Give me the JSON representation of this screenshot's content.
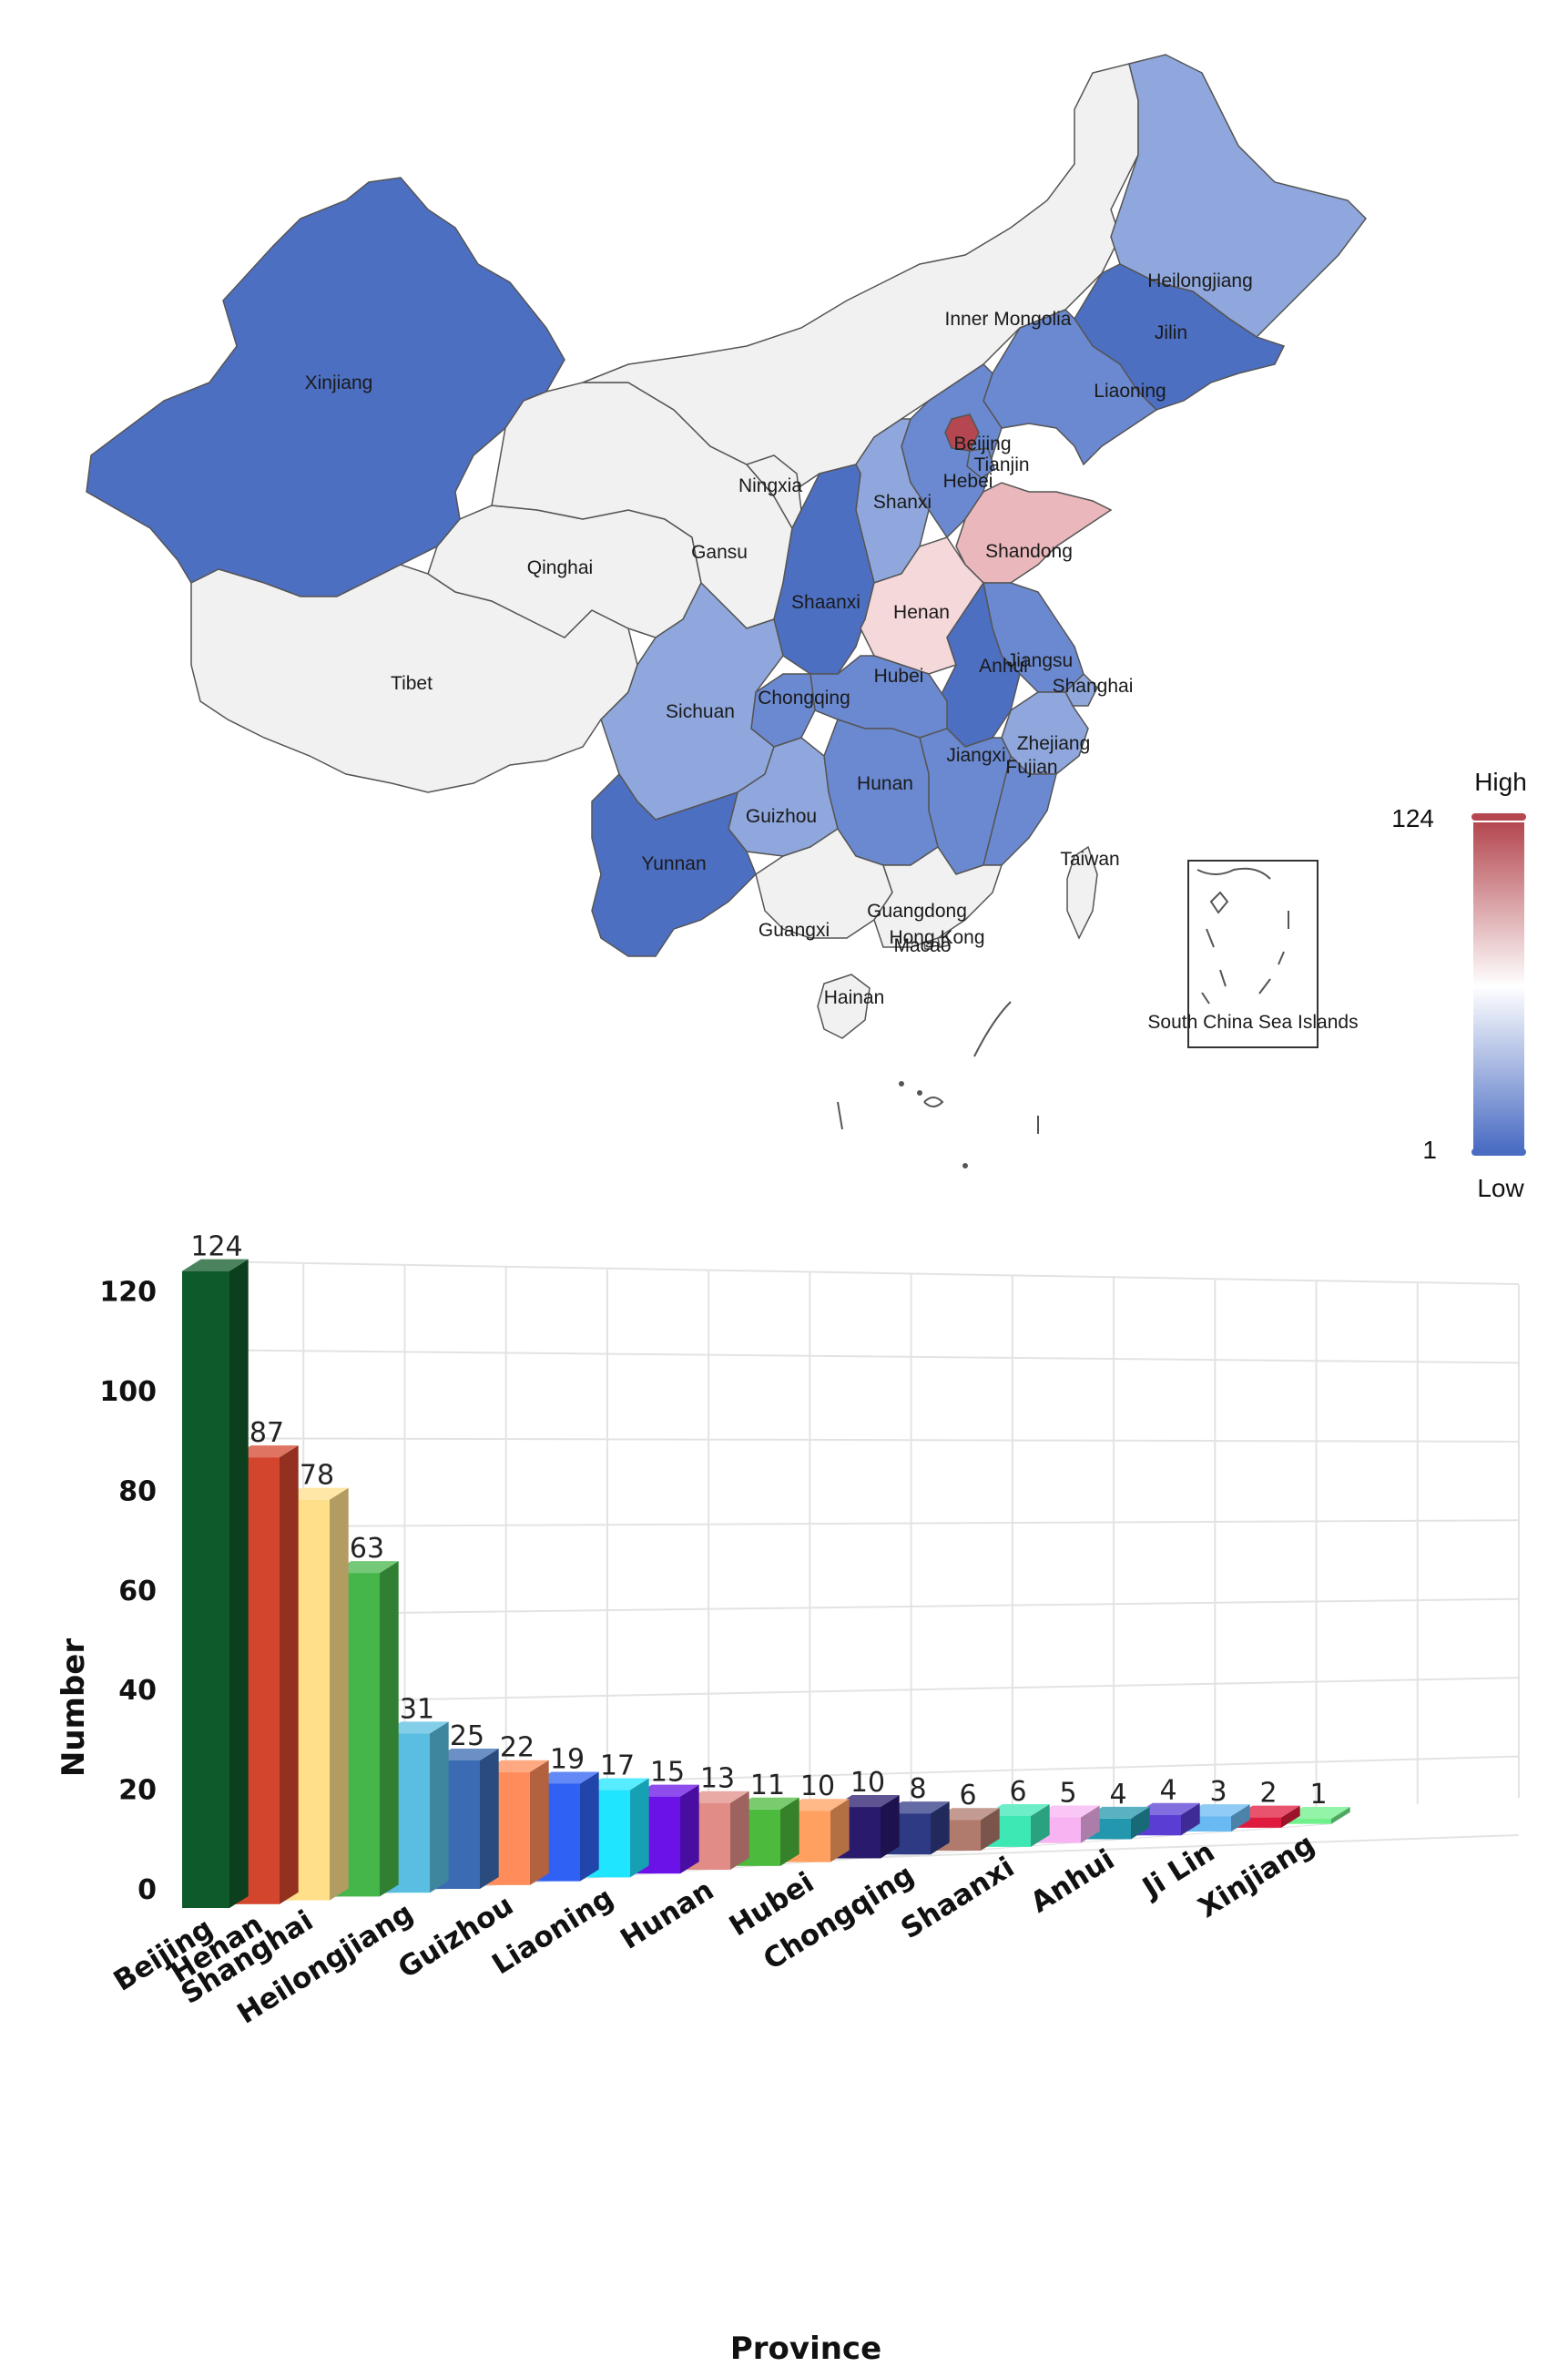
{
  "map": {
    "regions": [
      {
        "name": "Xinjiang",
        "level": "high-blue"
      },
      {
        "name": "Tibet",
        "level": "none"
      },
      {
        "name": "Qinghai",
        "level": "none"
      },
      {
        "name": "Gansu",
        "level": "none"
      },
      {
        "name": "Ningxia",
        "level": "none"
      },
      {
        "name": "Inner Mongolia",
        "level": "none"
      },
      {
        "name": "Heilongjiang",
        "level": "light"
      },
      {
        "name": "Jilin",
        "level": "high-blue"
      },
      {
        "name": "Liaoning",
        "level": "mid"
      },
      {
        "name": "Beijing",
        "level": "max"
      },
      {
        "name": "Tianjin",
        "level": "mid"
      },
      {
        "name": "Hebei",
        "level": "mid"
      },
      {
        "name": "Shanxi",
        "level": "light"
      },
      {
        "name": "Shandong",
        "level": "pink"
      },
      {
        "name": "Henan",
        "level": "pale-pink"
      },
      {
        "name": "Shaanxi",
        "level": "high-blue"
      },
      {
        "name": "Sichuan",
        "level": "light"
      },
      {
        "name": "Chongqing",
        "level": "mid"
      },
      {
        "name": "Hubei",
        "level": "mid"
      },
      {
        "name": "Anhui",
        "level": "high-blue"
      },
      {
        "name": "Jiangsu",
        "level": "mid"
      },
      {
        "name": "Shanghai",
        "level": "light"
      },
      {
        "name": "Zhejiang",
        "level": "light"
      },
      {
        "name": "Jiangxi",
        "level": "mid"
      },
      {
        "name": "Hunan",
        "level": "mid"
      },
      {
        "name": "Fujian",
        "level": "mid"
      },
      {
        "name": "Guizhou",
        "level": "light"
      },
      {
        "name": "Yunnan",
        "level": "high-blue"
      },
      {
        "name": "Guangxi",
        "level": "none"
      },
      {
        "name": "Guangdong",
        "level": "none"
      },
      {
        "name": "Hong Kong",
        "level": "none"
      },
      {
        "name": "Macao",
        "level": "none"
      },
      {
        "name": "Hainan",
        "level": "none"
      },
      {
        "name": "Taiwan",
        "level": "none"
      }
    ],
    "inset_label": "South China Sea Islands",
    "legend": {
      "high_label": "High",
      "low_label": "Low",
      "max_value": "124",
      "min_value": "1",
      "high_color": "#b4474f",
      "mid_color": "#ffffff",
      "low_color": "#4a6cc3"
    },
    "colors": {
      "none": "#f1f1f1",
      "light": "#8fa7dc",
      "mid": "#6b89d0",
      "high-blue": "#4d6fc2",
      "max": "#b4474f",
      "pink": "#eab8bc",
      "pale-pink": "#f5d8da",
      "border": "#555555"
    }
  },
  "chart_data": {
    "type": "bar",
    "xlabel": "Province",
    "ylabel": "Number",
    "ylim": [
      0,
      140
    ],
    "yticks": [
      0,
      20,
      40,
      60,
      80,
      100,
      120,
      140
    ],
    "grid": true,
    "categories": [
      "Beijing",
      "Henan",
      "Shanghai",
      "",
      "Heilongjiang",
      "",
      "Guizhou",
      "",
      "Liaoning",
      "",
      "Hunan",
      "",
      "Hubei",
      "",
      "Chongqing",
      "",
      "Shaanxi",
      "",
      "Anhui",
      "",
      "Ji Lin",
      "",
      "Xinjiang"
    ],
    "values": [
      124,
      87,
      78,
      63,
      31,
      25,
      22,
      19,
      17,
      15,
      13,
      11,
      10,
      10,
      8,
      6,
      6,
      5,
      4,
      4,
      3,
      2,
      1
    ],
    "colors": [
      "#0f5a2a",
      "#d4452e",
      "#ffdf8a",
      "#45b649",
      "#59bee2",
      "#3a6bb3",
      "#ff8c5a",
      "#2f62f4",
      "#1fe5ff",
      "#6a12e8",
      "#e28c87",
      "#4cba3c",
      "#ffa060",
      "#2a1a6e",
      "#2f3a85",
      "#b07a6c",
      "#3de8b5",
      "#f7b3f2",
      "#2397ad",
      "#5a3ed4",
      "#69b9f2",
      "#e01a3e",
      "#6ff08a"
    ]
  }
}
